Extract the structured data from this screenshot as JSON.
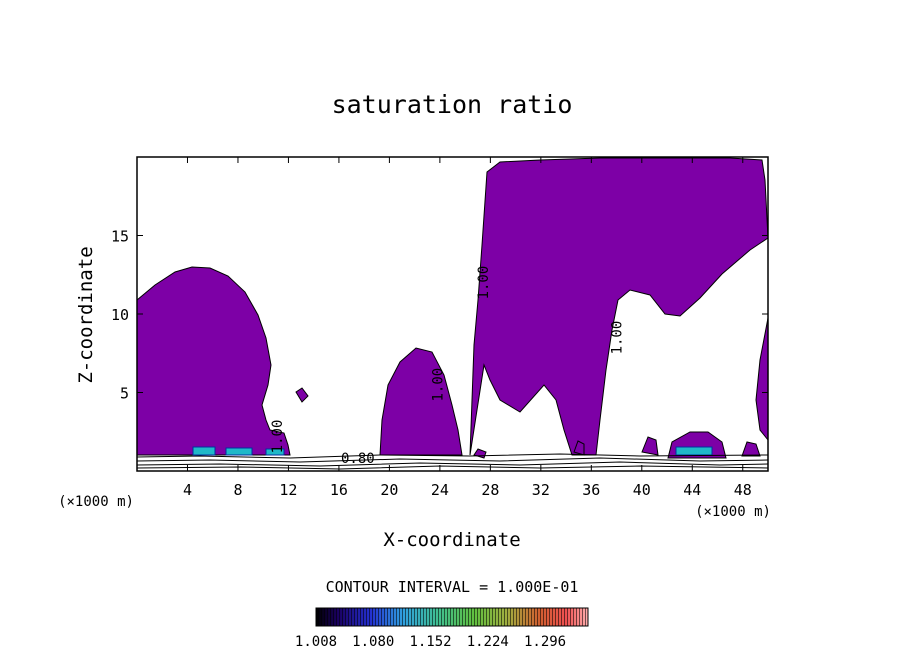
{
  "chart_data": {
    "type": "heatmap",
    "title": "saturation ratio",
    "xlabel": "X-coordinate",
    "ylabel": "Z-coordinate",
    "x_unit_label": "(×1000 m)",
    "z_unit_label": "(×1000 m)",
    "xlim": [
      0,
      50
    ],
    "ylim": [
      0,
      20
    ],
    "x_ticks": [
      4,
      8,
      12,
      16,
      20,
      24,
      28,
      32,
      36,
      40,
      44,
      48
    ],
    "y_ticks": [
      5,
      10,
      15
    ],
    "contour_labels": [
      {
        "text": "1.00",
        "x": 11.5,
        "z": 2.2,
        "angle": -90
      },
      {
        "text": "0.80",
        "x": 17.5,
        "z": 0.5,
        "angle": 0
      },
      {
        "text": "1.00",
        "x": 24.2,
        "z": 5.5,
        "angle": -90
      },
      {
        "text": "1.00",
        "x": 27.8,
        "z": 12.0,
        "angle": -90
      },
      {
        "text": "1.00",
        "x": 38.4,
        "z": 8.5,
        "angle": -90
      }
    ],
    "contour_interval_text": "CONTOUR INTERVAL = 1.000E-01",
    "colorbar": {
      "tick_labels": [
        "1.008",
        "1.080",
        "1.152",
        "1.224",
        "1.296"
      ],
      "min": 1.008,
      "max": 1.35
    },
    "fill_color": "#7d00a6",
    "supersaturated_regions": [
      {
        "name": "cloud-left",
        "x_range": [
          0,
          10.8
        ],
        "z_range": [
          0.9,
          13.0
        ]
      },
      {
        "name": "cloud-middle",
        "x_range": [
          19.2,
          25.2
        ],
        "z_range": [
          1.0,
          8.0
        ]
      },
      {
        "name": "cloud-right",
        "x_range": [
          27.2,
          50
        ],
        "z_range": [
          0.9,
          19.8
        ]
      },
      {
        "name": "patch-44",
        "x_range": [
          42.5,
          46.0
        ],
        "z_range": [
          0.9,
          2.7
        ]
      }
    ]
  }
}
